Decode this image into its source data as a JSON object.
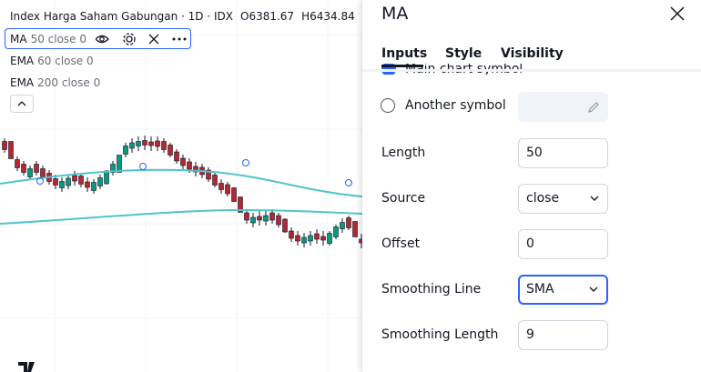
{
  "chart": {
    "title": "Index Harga Saham Gabungan · 1D · IDX",
    "open": "O6381.67",
    "high": "H6434.84",
    "indicators": [
      {
        "name": "MA",
        "params": "50 close 0"
      },
      {
        "name": "EMA",
        "params": "60 close 0"
      },
      {
        "name": "EMA",
        "params": "200 close 0"
      }
    ]
  },
  "panel": {
    "title": "MA",
    "tabs": [
      "Inputs",
      "Style",
      "Visibility"
    ],
    "hidden_option": "Main chart symbol",
    "another_symbol": "Another symbol",
    "fields": [
      {
        "label": "Length",
        "value": "50"
      },
      {
        "label": "Source",
        "value": "close"
      },
      {
        "label": "Offset",
        "value": "0"
      },
      {
        "label": "Smoothing Line",
        "value": "SMA"
      },
      {
        "label": "Smoothing Length",
        "value": "9"
      }
    ]
  }
}
